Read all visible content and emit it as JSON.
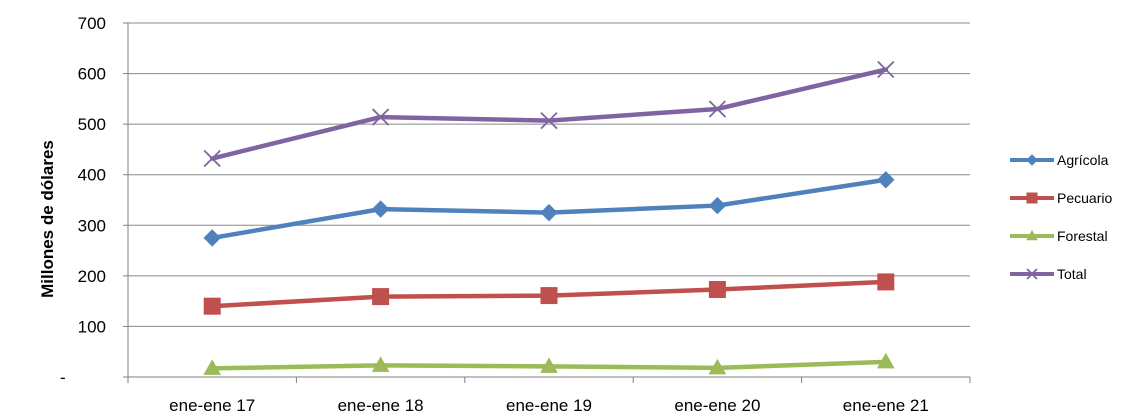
{
  "chart_data": {
    "type": "line",
    "categories": [
      "ene-ene 17",
      "ene-ene 18",
      "ene-ene 19",
      "ene-ene 20",
      "ene-ene 21"
    ],
    "series": [
      {
        "name": "Agrícola",
        "values": [
          275,
          332,
          325,
          339,
          390
        ],
        "color": "#4F81BD",
        "marker": "diamond"
      },
      {
        "name": "Pecuario",
        "values": [
          140,
          159,
          161,
          173,
          188
        ],
        "color": "#C0504D",
        "marker": "square"
      },
      {
        "name": "Forestal",
        "values": [
          17,
          23,
          21,
          18,
          30
        ],
        "color": "#9BBB59",
        "marker": "triangle"
      },
      {
        "name": "Total",
        "values": [
          432,
          514,
          507,
          530,
          608
        ],
        "color": "#8064A2",
        "marker": "x"
      }
    ],
    "ylabel": "Millones de dólares",
    "xlabel": "",
    "ylim": [
      0,
      700
    ],
    "yticks": [
      {
        "value": 0,
        "label": "-"
      },
      {
        "value": 100,
        "label": "100"
      },
      {
        "value": 200,
        "label": "200"
      },
      {
        "value": 300,
        "label": "300"
      },
      {
        "value": 400,
        "label": "400"
      },
      {
        "value": 500,
        "label": "500"
      },
      {
        "value": 600,
        "label": "600"
      },
      {
        "value": 700,
        "label": "700"
      }
    ],
    "grid": true,
    "legend": "right",
    "gridline_color": "#888888",
    "axis_color": "#808080"
  }
}
